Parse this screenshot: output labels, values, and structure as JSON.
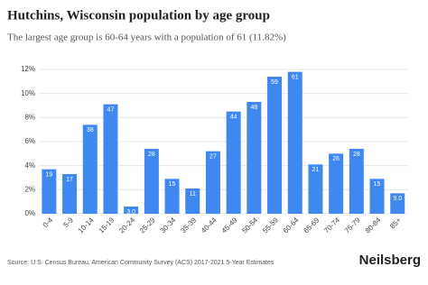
{
  "chart_data": {
    "type": "bar",
    "title": "Hutchins, Wisconsin population by age group",
    "subtitle": "The largest age group is 60-64 years with a population of 61 (11.82%)",
    "categories": [
      "0-4",
      "5-9",
      "10-14",
      "15-19",
      "20-24",
      "25-29",
      "30-34",
      "35-39",
      "40-44",
      "45-49",
      "50-54",
      "55-59",
      "60-64",
      "65-69",
      "70-74",
      "75-79",
      "80-84",
      "85+"
    ],
    "values": [
      3.7,
      3.3,
      7.4,
      9.1,
      0.6,
      5.4,
      2.9,
      2.1,
      5.2,
      8.5,
      9.3,
      11.4,
      11.8,
      4.1,
      5.0,
      5.4,
      2.9,
      1.7
    ],
    "data_labels": [
      "19",
      "17",
      "38",
      "47",
      "3.0",
      "28",
      "15",
      "11",
      "27",
      "44",
      "48",
      "59",
      "61",
      "21",
      "26",
      "28",
      "15",
      "9.0"
    ],
    "color": "#3f88f0",
    "ylim": [
      0,
      12
    ],
    "yticks": [
      {
        "value": 0,
        "label": "0%"
      },
      {
        "value": 2,
        "label": "2%"
      },
      {
        "value": 4,
        "label": "4%"
      },
      {
        "value": 6,
        "label": "6%"
      },
      {
        "value": 8,
        "label": "8%"
      },
      {
        "value": 10,
        "label": "10%"
      },
      {
        "value": 12,
        "label": "12%"
      }
    ],
    "grid": true,
    "source": "Source: U.S. Census Bureau, American Community Survey (ACS) 2017-2021 5-Year Estimates",
    "brand": "Neilsberg"
  }
}
